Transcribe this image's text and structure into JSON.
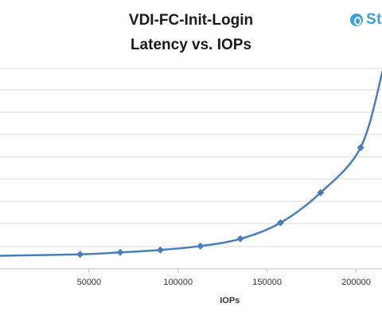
{
  "chart_data": {
    "type": "line",
    "title_lines": [
      "VDI-FC-Init-Login",
      "Latency vs. IOPs"
    ],
    "xlabel": "IOPs",
    "ylabel": "",
    "x_ticks": [
      "50000",
      "100000",
      "150000",
      "200000"
    ],
    "x_tick_values": [
      50000,
      100000,
      150000,
      200000
    ],
    "xlim": [
      0,
      215000
    ],
    "ylim": [
      0,
      4.0
    ],
    "y_gridlines": [
      0.5,
      1.0,
      1.5,
      2.0,
      2.5,
      3.0,
      3.5,
      4.0
    ],
    "grid": true,
    "series": [
      {
        "color": "#4a7ebb",
        "marker": "diamond",
        "points": [
          {
            "x": 45000,
            "y": 0.3
          },
          {
            "x": 67500,
            "y": 0.34
          },
          {
            "x": 90000,
            "y": 0.39
          },
          {
            "x": 112500,
            "y": 0.47
          },
          {
            "x": 135000,
            "y": 0.62
          },
          {
            "x": 157500,
            "y": 0.95
          },
          {
            "x": 180000,
            "y": 1.57
          },
          {
            "x": 202500,
            "y": 2.5
          },
          {
            "x": 215000,
            "y": 4.1
          }
        ]
      }
    ]
  },
  "logo": {
    "text": "St"
  }
}
